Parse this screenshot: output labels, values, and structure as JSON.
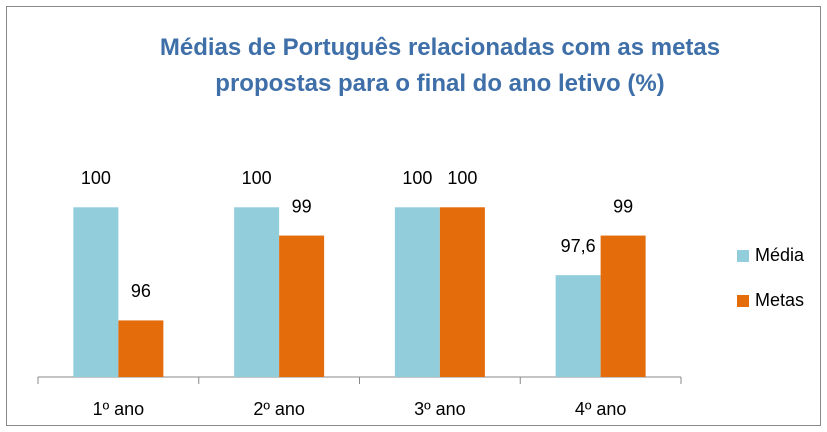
{
  "chart_data": {
    "type": "bar",
    "title": "Médias de Português relacionadas com as metas propostas para o final do ano letivo (%)",
    "categories": [
      "1º ano",
      "2º ano",
      "3º ano",
      "4º ano"
    ],
    "series": [
      {
        "name": "Média",
        "color": "#92cddc",
        "values": [
          100,
          100,
          100,
          97.6
        ],
        "value_labels": [
          "100",
          "100",
          "100",
          "97,6"
        ]
      },
      {
        "name": "Metas",
        "color": "#e46c0a",
        "values": [
          96,
          99,
          100,
          99
        ],
        "value_labels": [
          "96",
          "99",
          "100",
          "99"
        ]
      }
    ],
    "ylim": [
      94,
      101
    ],
    "legend": "right"
  }
}
